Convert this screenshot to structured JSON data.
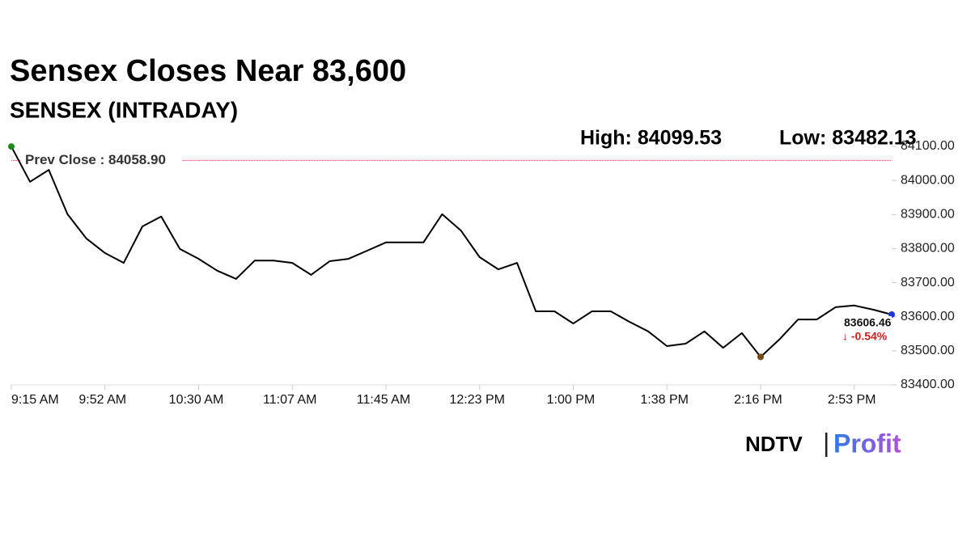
{
  "chart_data": {
    "type": "line",
    "title": "Sensex Closes Near 83,600",
    "subtitle": "SENSEX (INTRADAY)",
    "high": {
      "value": 84099.53,
      "label": "High: 84099.53"
    },
    "low": {
      "value": 83482.13,
      "label": "Low: 83482.13"
    },
    "prev_close": {
      "value": 84058.9,
      "label": "Prev Close : 84058.90"
    },
    "last": {
      "value": 83606.46,
      "label": "83606.46"
    },
    "change": {
      "value": -0.54,
      "label": "↓ -0.54%"
    },
    "categories": [
      "9:15 AM",
      null,
      null,
      null,
      null,
      "9:52 AM",
      null,
      null,
      null,
      null,
      "10:30 AM",
      null,
      null,
      null,
      null,
      "11:07 AM",
      null,
      null,
      null,
      null,
      "11:45 AM",
      null,
      null,
      null,
      null,
      "12:23 PM",
      null,
      null,
      null,
      null,
      "1:00 PM",
      null,
      null,
      null,
      null,
      "1:38 PM",
      null,
      null,
      null,
      null,
      "2:16 PM",
      null,
      null,
      null,
      null,
      "2:53 PM",
      null,
      null
    ],
    "series": [
      {
        "name": "SENSEX",
        "color": "#000000",
        "values": [
          84099.53,
          83996,
          84031,
          83901,
          83830,
          83787,
          83758,
          83865,
          83894,
          83799,
          83770,
          83735,
          83711,
          83765,
          83765,
          83758,
          83723,
          83763,
          83770,
          83794,
          83818,
          83818,
          83818,
          83901,
          83853,
          83775,
          83739,
          83758,
          83616,
          83616,
          83580,
          83616,
          83616,
          83585,
          83557,
          83514,
          83521,
          83557,
          83509,
          83552,
          83482.13,
          83533,
          83592,
          83592,
          83628,
          83633,
          83621,
          83606.46
        ]
      }
    ],
    "ylim": [
      83400,
      84100
    ],
    "yticks": [
      {
        "value": 83400,
        "label": "83400.00"
      },
      {
        "value": 83500,
        "label": "83500.00"
      },
      {
        "value": 83600,
        "label": "83600.00"
      },
      {
        "value": 83700,
        "label": "83700.00"
      },
      {
        "value": 83800,
        "label": "83800.00"
      },
      {
        "value": 83900,
        "label": "83900.00"
      },
      {
        "value": 84000,
        "label": "84000.00"
      },
      {
        "value": 84100,
        "label": "84100.00"
      }
    ]
  },
  "branding": {
    "brand": "NDTV",
    "separator": "|",
    "product": "Profit"
  }
}
